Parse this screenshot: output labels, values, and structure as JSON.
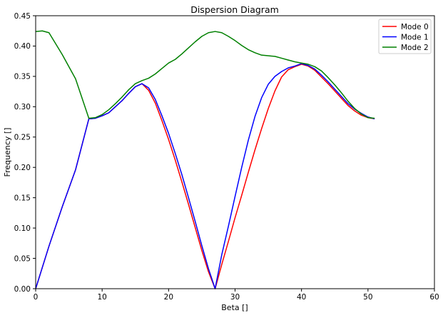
{
  "chart_data": {
    "type": "line",
    "title": "Dispersion Diagram",
    "xlabel": "Beta []",
    "ylabel": "Frequency []",
    "xlim": [
      0,
      60
    ],
    "ylim": [
      0,
      0.45
    ],
    "xticks": [
      "0",
      "10",
      "20",
      "30",
      "40",
      "50",
      "60"
    ],
    "yticks": [
      "0.00",
      "0.05",
      "0.10",
      "0.15",
      "0.20",
      "0.25",
      "0.30",
      "0.35",
      "0.40",
      "0.45"
    ],
    "grid": false,
    "legend_position": "top-right",
    "series": [
      {
        "name": "Mode 0",
        "color": "#ff0000",
        "x": [
          0,
          2,
          4,
          6,
          8,
          9,
          10,
          11,
          12,
          13,
          14,
          15,
          16,
          17,
          18,
          19,
          20,
          21,
          22,
          23,
          24,
          25,
          26,
          27,
          28,
          29,
          30,
          31,
          32,
          33,
          34,
          35,
          36,
          37,
          38,
          39,
          40,
          41,
          42,
          43,
          44,
          45,
          46,
          47,
          48,
          49,
          50,
          51
        ],
        "y": [
          0.0,
          0.07,
          0.135,
          0.196,
          0.28,
          0.281,
          0.285,
          0.29,
          0.3,
          0.31,
          0.322,
          0.333,
          0.338,
          0.327,
          0.306,
          0.277,
          0.246,
          0.212,
          0.176,
          0.139,
          0.101,
          0.063,
          0.028,
          0.0,
          0.04,
          0.078,
          0.117,
          0.154,
          0.192,
          0.229,
          0.264,
          0.297,
          0.326,
          0.349,
          0.361,
          0.366,
          0.37,
          0.367,
          0.36,
          0.349,
          0.338,
          0.326,
          0.314,
          0.302,
          0.293,
          0.286,
          0.282,
          0.28
        ]
      },
      {
        "name": "Mode 1",
        "color": "#0000ff",
        "x": [
          0,
          2,
          4,
          6,
          8,
          9,
          10,
          11,
          12,
          13,
          14,
          15,
          16,
          17,
          18,
          19,
          20,
          21,
          22,
          23,
          24,
          25,
          26,
          27,
          28,
          29,
          30,
          31,
          32,
          33,
          34,
          35,
          36,
          37,
          38,
          39,
          40,
          41,
          42,
          43,
          44,
          45,
          46,
          47,
          48,
          49,
          50,
          51
        ],
        "y": [
          0.0,
          0.07,
          0.135,
          0.196,
          0.28,
          0.281,
          0.285,
          0.29,
          0.3,
          0.31,
          0.322,
          0.333,
          0.338,
          0.331,
          0.312,
          0.285,
          0.256,
          0.223,
          0.188,
          0.15,
          0.111,
          0.071,
          0.033,
          0.0,
          0.056,
          0.103,
          0.152,
          0.2,
          0.245,
          0.284,
          0.315,
          0.337,
          0.35,
          0.358,
          0.364,
          0.367,
          0.371,
          0.368,
          0.362,
          0.352,
          0.341,
          0.329,
          0.317,
          0.305,
          0.296,
          0.289,
          0.283,
          0.28
        ]
      },
      {
        "name": "Mode 2",
        "color": "#008000",
        "x": [
          0,
          1,
          2,
          4,
          6,
          8,
          9,
          10,
          11,
          12,
          13,
          14,
          15,
          16,
          17,
          18,
          19,
          20,
          21,
          22,
          23,
          24,
          25,
          26,
          27,
          28,
          29,
          30,
          31,
          32,
          33,
          34,
          35,
          36,
          37,
          38,
          39,
          40,
          41,
          42,
          43,
          44,
          45,
          46,
          47,
          48,
          49,
          50,
          51
        ],
        "y": [
          0.424,
          0.425,
          0.422,
          0.386,
          0.346,
          0.281,
          0.282,
          0.287,
          0.295,
          0.305,
          0.316,
          0.328,
          0.338,
          0.343,
          0.347,
          0.354,
          0.363,
          0.372,
          0.378,
          0.387,
          0.397,
          0.407,
          0.416,
          0.422,
          0.424,
          0.422,
          0.416,
          0.409,
          0.401,
          0.394,
          0.389,
          0.385,
          0.384,
          0.383,
          0.38,
          0.377,
          0.374,
          0.372,
          0.37,
          0.366,
          0.359,
          0.348,
          0.336,
          0.323,
          0.309,
          0.297,
          0.288,
          0.282,
          0.281
        ]
      }
    ]
  }
}
